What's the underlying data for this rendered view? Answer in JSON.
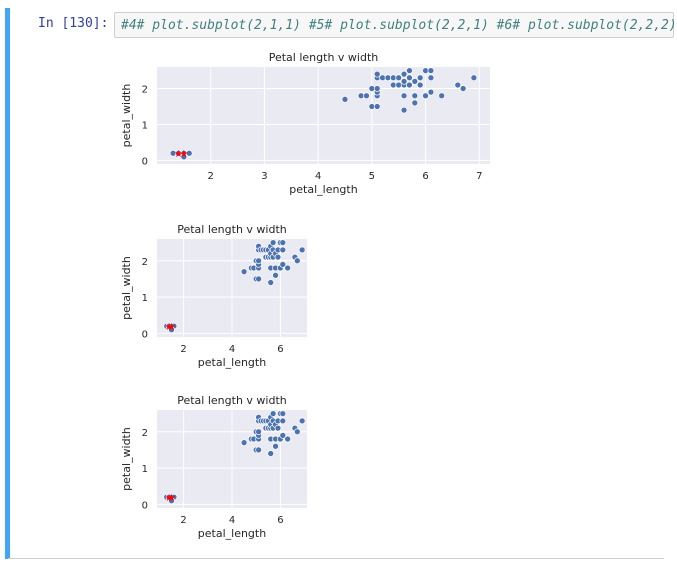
{
  "cell": {
    "prompt": "In [130]:",
    "code": "#4# plot.subplot(2,1,1) #5# plot.subplot(2,2,1) #6# plot.subplot(2,2,2)"
  },
  "colors": {
    "cell_bar": "#42a5f5",
    "plot_bg": "#eaeaf2",
    "points": "#4c72b0",
    "highlight": "#ff0000"
  },
  "chart_data": [
    {
      "type": "scatter",
      "title": "Petal length v width",
      "xlabel": "petal_length",
      "ylabel": "petal_width",
      "xlim": [
        1.0,
        7.2
      ],
      "ylim": [
        -0.1,
        2.6
      ],
      "xticks": [
        2,
        3,
        4,
        5,
        6,
        7
      ],
      "yticks": [
        0,
        1,
        2
      ],
      "grid": true,
      "series": [
        {
          "points": [
            [
              4.5,
              1.7
            ],
            [
              4.8,
              1.8
            ],
            [
              4.9,
              1.8
            ],
            [
              5.0,
              1.5
            ],
            [
              5.0,
              2.0
            ],
            [
              5.1,
              1.5
            ],
            [
              5.1,
              1.8
            ],
            [
              5.1,
              1.9
            ],
            [
              5.1,
              2.0
            ],
            [
              5.1,
              2.3
            ],
            [
              5.1,
              2.4
            ],
            [
              5.2,
              2.3
            ],
            [
              5.3,
              2.3
            ],
            [
              5.4,
              2.1
            ],
            [
              5.4,
              2.3
            ],
            [
              5.5,
              2.3
            ],
            [
              5.5,
              2.1
            ],
            [
              5.6,
              1.4
            ],
            [
              5.6,
              1.8
            ],
            [
              5.6,
              2.1
            ],
            [
              5.6,
              2.2
            ],
            [
              5.6,
              2.4
            ],
            [
              5.7,
              2.1
            ],
            [
              5.7,
              2.3
            ],
            [
              5.7,
              2.5
            ],
            [
              5.8,
              1.6
            ],
            [
              5.8,
              1.8
            ],
            [
              5.8,
              2.2
            ],
            [
              5.9,
              2.1
            ],
            [
              5.9,
              2.3
            ],
            [
              6.0,
              1.8
            ],
            [
              6.0,
              2.5
            ],
            [
              6.1,
              1.9
            ],
            [
              6.1,
              2.3
            ],
            [
              6.1,
              2.5
            ],
            [
              6.3,
              1.8
            ],
            [
              6.6,
              2.1
            ],
            [
              6.7,
              2.0
            ],
            [
              6.9,
              2.3
            ],
            [
              1.3,
              0.2
            ],
            [
              1.4,
              0.2
            ],
            [
              1.5,
              0.2
            ],
            [
              1.6,
              0.2
            ],
            [
              1.5,
              0.1
            ]
          ]
        },
        {
          "points": [
            [
              1.4,
              0.2
            ],
            [
              1.5,
              0.2
            ]
          ]
        }
      ]
    },
    {
      "type": "scatter",
      "title": "Petal length v width",
      "xlabel": "petal_length",
      "ylabel": "petal_width",
      "xlim": [
        0.9,
        7.1
      ],
      "ylim": [
        -0.1,
        2.6
      ],
      "xticks": [
        2,
        4,
        6
      ],
      "yticks": [
        0,
        1,
        2
      ],
      "grid": true,
      "series": [
        {
          "points": [
            [
              4.5,
              1.7
            ],
            [
              4.8,
              1.8
            ],
            [
              4.9,
              1.8
            ],
            [
              5.0,
              1.5
            ],
            [
              5.0,
              2.0
            ],
            [
              5.1,
              1.5
            ],
            [
              5.1,
              1.8
            ],
            [
              5.1,
              1.9
            ],
            [
              5.1,
              2.0
            ],
            [
              5.1,
              2.3
            ],
            [
              5.1,
              2.4
            ],
            [
              5.2,
              2.3
            ],
            [
              5.3,
              2.3
            ],
            [
              5.4,
              2.1
            ],
            [
              5.4,
              2.3
            ],
            [
              5.5,
              2.3
            ],
            [
              5.5,
              2.1
            ],
            [
              5.6,
              1.4
            ],
            [
              5.6,
              1.8
            ],
            [
              5.6,
              2.1
            ],
            [
              5.6,
              2.2
            ],
            [
              5.6,
              2.4
            ],
            [
              5.7,
              2.1
            ],
            [
              5.7,
              2.3
            ],
            [
              5.7,
              2.5
            ],
            [
              5.8,
              1.6
            ],
            [
              5.8,
              1.8
            ],
            [
              5.8,
              2.2
            ],
            [
              5.9,
              2.1
            ],
            [
              5.9,
              2.3
            ],
            [
              6.0,
              1.8
            ],
            [
              6.0,
              2.5
            ],
            [
              6.1,
              1.9
            ],
            [
              6.1,
              2.3
            ],
            [
              6.1,
              2.5
            ],
            [
              6.3,
              1.8
            ],
            [
              6.6,
              2.1
            ],
            [
              6.7,
              2.0
            ],
            [
              6.9,
              2.3
            ],
            [
              1.3,
              0.2
            ],
            [
              1.4,
              0.2
            ],
            [
              1.5,
              0.2
            ],
            [
              1.6,
              0.2
            ],
            [
              1.5,
              0.1
            ]
          ]
        },
        {
          "points": [
            [
              1.4,
              0.2
            ],
            [
              1.5,
              0.2
            ]
          ]
        }
      ]
    },
    {
      "type": "scatter",
      "title": "Petal length v width",
      "xlabel": "petal_length",
      "ylabel": "petal_width",
      "xlim": [
        0.9,
        7.1
      ],
      "ylim": [
        -0.1,
        2.6
      ],
      "xticks": [
        2,
        4,
        6
      ],
      "yticks": [
        0,
        1,
        2
      ],
      "grid": true,
      "series": [
        {
          "points": [
            [
              4.5,
              1.7
            ],
            [
              4.8,
              1.8
            ],
            [
              4.9,
              1.8
            ],
            [
              5.0,
              1.5
            ],
            [
              5.0,
              2.0
            ],
            [
              5.1,
              1.5
            ],
            [
              5.1,
              1.8
            ],
            [
              5.1,
              1.9
            ],
            [
              5.1,
              2.0
            ],
            [
              5.1,
              2.3
            ],
            [
              5.1,
              2.4
            ],
            [
              5.2,
              2.3
            ],
            [
              5.3,
              2.3
            ],
            [
              5.4,
              2.1
            ],
            [
              5.4,
              2.3
            ],
            [
              5.5,
              2.3
            ],
            [
              5.5,
              2.1
            ],
            [
              5.6,
              1.4
            ],
            [
              5.6,
              1.8
            ],
            [
              5.6,
              2.1
            ],
            [
              5.6,
              2.2
            ],
            [
              5.6,
              2.4
            ],
            [
              5.7,
              2.1
            ],
            [
              5.7,
              2.3
            ],
            [
              5.7,
              2.5
            ],
            [
              5.8,
              1.6
            ],
            [
              5.8,
              1.8
            ],
            [
              5.8,
              2.2
            ],
            [
              5.9,
              2.1
            ],
            [
              5.9,
              2.3
            ],
            [
              6.0,
              1.8
            ],
            [
              6.0,
              2.5
            ],
            [
              6.1,
              1.9
            ],
            [
              6.1,
              2.3
            ],
            [
              6.1,
              2.5
            ],
            [
              6.3,
              1.8
            ],
            [
              6.6,
              2.1
            ],
            [
              6.7,
              2.0
            ],
            [
              6.9,
              2.3
            ],
            [
              1.3,
              0.2
            ],
            [
              1.4,
              0.2
            ],
            [
              1.5,
              0.2
            ],
            [
              1.6,
              0.2
            ],
            [
              1.5,
              0.1
            ]
          ]
        },
        {
          "points": [
            [
              1.4,
              0.2
            ],
            [
              1.5,
              0.2
            ]
          ]
        }
      ]
    }
  ]
}
